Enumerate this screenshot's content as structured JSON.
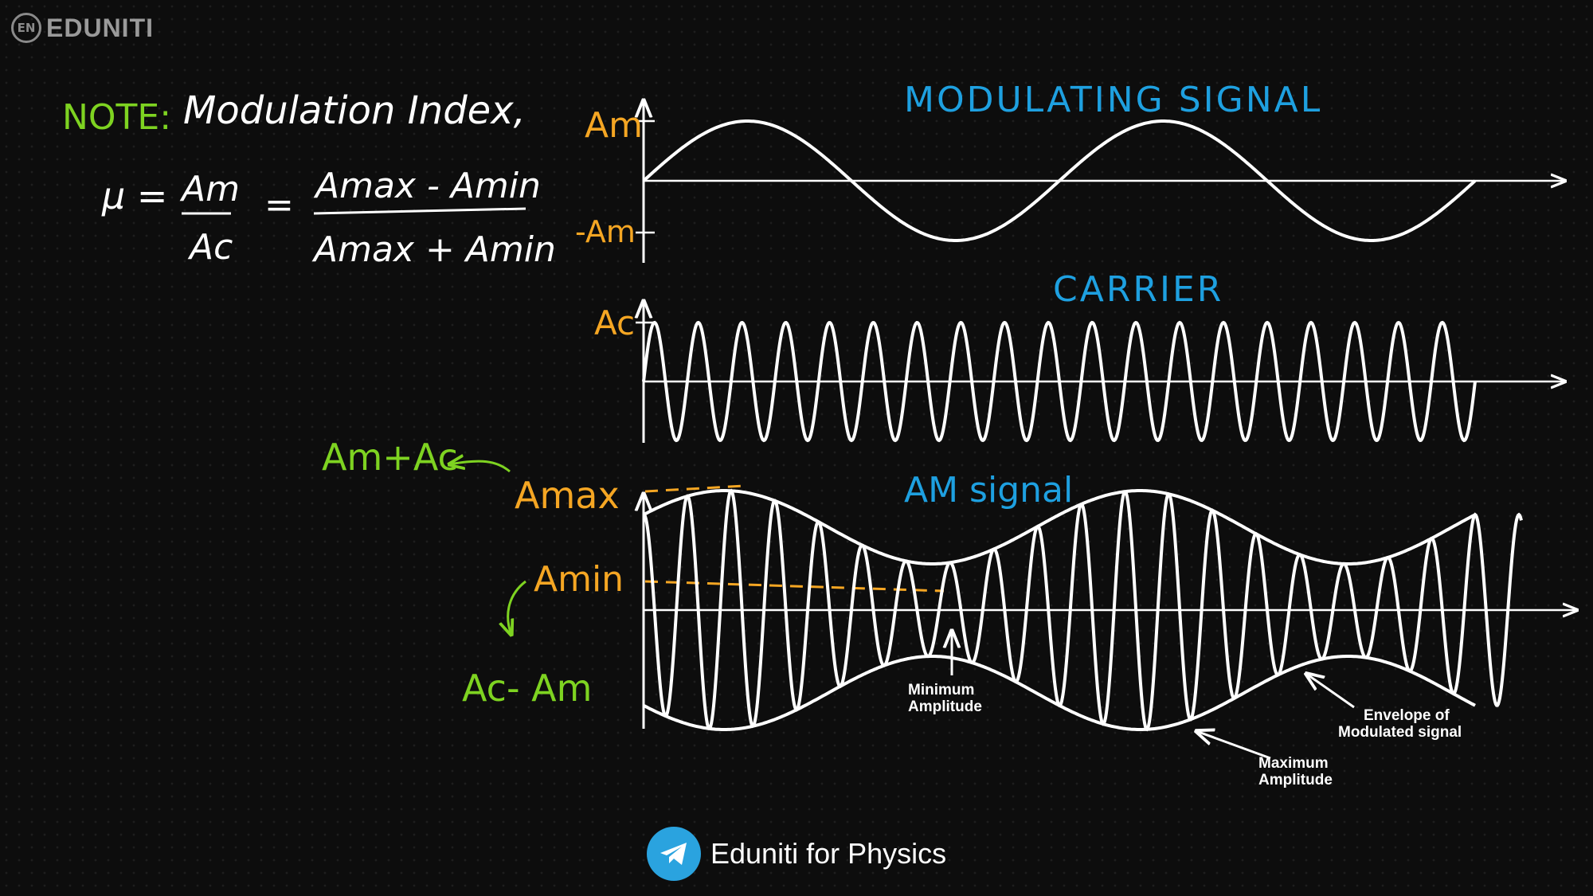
{
  "brand": {
    "badge": "EN",
    "name": "EDUNITI"
  },
  "note": {
    "label": "NOTE:",
    "text": "Modulation Index,",
    "mu": "μ =",
    "num1": "Am",
    "den1": "Ac",
    "eq": "=",
    "num2": "Amax - Amin",
    "den2": "Amax + Amin"
  },
  "modulating": {
    "title": "MODULATING SIGNAL",
    "pos_label": "Am",
    "neg_label": "-Am"
  },
  "carrier": {
    "title": "CARRIER",
    "label": "Ac"
  },
  "am": {
    "title": "AM signal",
    "amax_label": "Amax",
    "amin_label": "Amin",
    "sum_label": "Am+Ac",
    "diff_label": "Ac- Am",
    "min_amp_1": "Minimum",
    "min_amp_2": "Amplitude",
    "max_amp_1": "Maximum",
    "max_amp_2": "Amplitude",
    "env_1": "Envelope of",
    "env_2": "Modulated signal"
  },
  "footer": {
    "text": "Eduniti for Physics"
  },
  "colors": {
    "note": "#7ed321",
    "blue": "#1ea0e0",
    "orange": "#f5a623",
    "white": "#ffffff",
    "telegram": "#2aa3df"
  }
}
